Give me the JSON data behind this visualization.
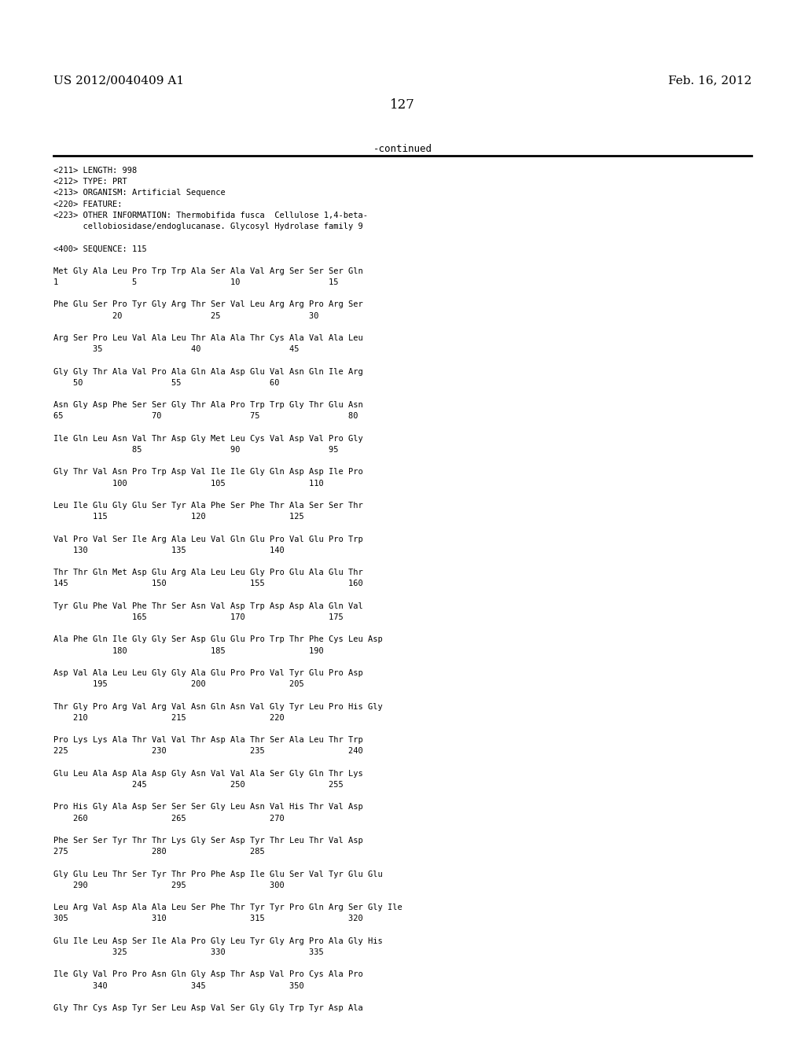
{
  "header_left": "US 2012/0040409 A1",
  "header_right": "Feb. 16, 2012",
  "page_number": "127",
  "continued_text": "-continued",
  "background_color": "#ffffff",
  "text_color": "#000000",
  "body_lines": [
    "<211> LENGTH: 998",
    "<212> TYPE: PRT",
    "<213> ORGANISM: Artificial Sequence",
    "<220> FEATURE:",
    "<223> OTHER INFORMATION: Thermobifida fusca  Cellulose 1,4-beta-",
    "      cellobiosidase/endoglucanase. Glycosyl Hydrolase family 9",
    "",
    "<400> SEQUENCE: 115",
    "",
    "Met Gly Ala Leu Pro Trp Trp Ala Ser Ala Val Arg Ser Ser Ser Gln",
    "1               5                   10                  15",
    "",
    "Phe Glu Ser Pro Tyr Gly Arg Thr Ser Val Leu Arg Arg Pro Arg Ser",
    "            20                  25                  30",
    "",
    "Arg Ser Pro Leu Val Ala Leu Thr Ala Ala Thr Cys Ala Val Ala Leu",
    "        35                  40                  45",
    "",
    "Gly Gly Thr Ala Val Pro Ala Gln Ala Asp Glu Val Asn Gln Ile Arg",
    "    50                  55                  60",
    "",
    "Asn Gly Asp Phe Ser Ser Gly Thr Ala Pro Trp Trp Gly Thr Glu Asn",
    "65                  70                  75                  80",
    "",
    "Ile Gln Leu Asn Val Thr Asp Gly Met Leu Cys Val Asp Val Pro Gly",
    "                85                  90                  95",
    "",
    "Gly Thr Val Asn Pro Trp Asp Val Ile Ile Gly Gln Asp Asp Ile Pro",
    "            100                 105                 110",
    "",
    "Leu Ile Glu Gly Glu Ser Tyr Ala Phe Ser Phe Thr Ala Ser Ser Thr",
    "        115                 120                 125",
    "",
    "Val Pro Val Ser Ile Arg Ala Leu Val Gln Glu Pro Val Glu Pro Trp",
    "    130                 135                 140",
    "",
    "Thr Thr Gln Met Asp Glu Arg Ala Leu Leu Gly Pro Glu Ala Glu Thr",
    "145                 150                 155                 160",
    "",
    "Tyr Glu Phe Val Phe Thr Ser Asn Val Asp Trp Asp Asp Ala Gln Val",
    "                165                 170                 175",
    "",
    "Ala Phe Gln Ile Gly Gly Ser Asp Glu Glu Pro Trp Thr Phe Cys Leu Asp",
    "            180                 185                 190",
    "",
    "Asp Val Ala Leu Leu Gly Gly Ala Glu Pro Pro Val Tyr Glu Pro Asp",
    "        195                 200                 205",
    "",
    "Thr Gly Pro Arg Val Arg Val Asn Gln Asn Val Gly Tyr Leu Pro His Gly",
    "    210                 215                 220",
    "",
    "Pro Lys Lys Ala Thr Val Val Thr Asp Ala Thr Ser Ala Leu Thr Trp",
    "225                 230                 235                 240",
    "",
    "Glu Leu Ala Asp Ala Asp Gly Asn Val Val Ala Ser Gly Gln Thr Lys",
    "                245                 250                 255",
    "",
    "Pro His Gly Ala Asp Ser Ser Ser Gly Leu Asn Val His Thr Val Asp",
    "    260                 265                 270",
    "",
    "Phe Ser Ser Tyr Thr Thr Lys Gly Ser Asp Tyr Thr Leu Thr Val Asp",
    "275                 280                 285",
    "",
    "Gly Glu Leu Thr Ser Tyr Thr Pro Phe Asp Ile Glu Ser Val Tyr Glu Glu",
    "    290                 295                 300",
    "",
    "Leu Arg Val Asp Ala Ala Leu Ser Phe Thr Tyr Tyr Pro Gln Arg Ser Gly Ile",
    "305                 310                 315                 320",
    "",
    "Glu Ile Leu Asp Ser Ile Ala Pro Gly Leu Tyr Gly Arg Pro Ala Gly His",
    "            325                 330                 335",
    "",
    "Ile Gly Val Pro Pro Asn Gln Gly Asp Thr Asp Val Pro Cys Ala Pro",
    "        340                 345                 350",
    "",
    "Gly Thr Cys Asp Tyr Ser Leu Asp Val Ser Gly Gly Trp Tyr Asp Ala"
  ]
}
